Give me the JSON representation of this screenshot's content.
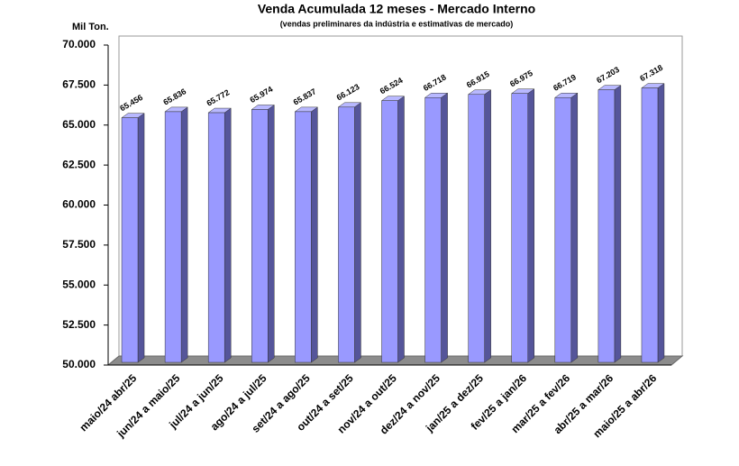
{
  "chart_data": {
    "type": "bar",
    "title": "Venda Acumulada 12 meses -  Mercado Interno",
    "subtitle": "(vendas preliminares da indústria e estimativas de mercado)",
    "y_axis_label": "Mil Ton.",
    "categories": [
      "maio/24 abr/25",
      "jun/24 a maio/25",
      "jul/24 a jun/25",
      "ago/24 a jul/25",
      "set/24 a ago/25",
      "out/24 a set/25",
      "nov/24 a out/25",
      "dez/24 a nov/25",
      "jan/25 a dez/25",
      "fev/25 a jan/26",
      "mar/25 a fev/26",
      "abr/25 a mar/26",
      "maio/25 a abr/26"
    ],
    "values": [
      65456,
      65836,
      65772,
      65974,
      65837,
      66123,
      66524,
      66718,
      66915,
      66975,
      66719,
      67203,
      67318
    ],
    "value_labels": [
      "65.456",
      "65.836",
      "65.772",
      "65.974",
      "65.837",
      "66.123",
      "66.524",
      "66.718",
      "66.915",
      "66.975",
      "66.719",
      "67.203",
      "67.318"
    ],
    "color": "#9999ff",
    "ylim": [
      50000,
      70000
    ],
    "yticks": [
      {
        "value": 50000,
        "label": "50.000"
      },
      {
        "value": 52500,
        "label": "52.500"
      },
      {
        "value": 55000,
        "label": "55.000"
      },
      {
        "value": 57500,
        "label": "57.500"
      },
      {
        "value": 60000,
        "label": "60.000"
      },
      {
        "value": 62500,
        "label": "62.500"
      },
      {
        "value": 65000,
        "label": "65.000"
      },
      {
        "value": 67500,
        "label": "67.500"
      },
      {
        "value": 70000,
        "label": "70.000"
      }
    ],
    "grid": false
  }
}
